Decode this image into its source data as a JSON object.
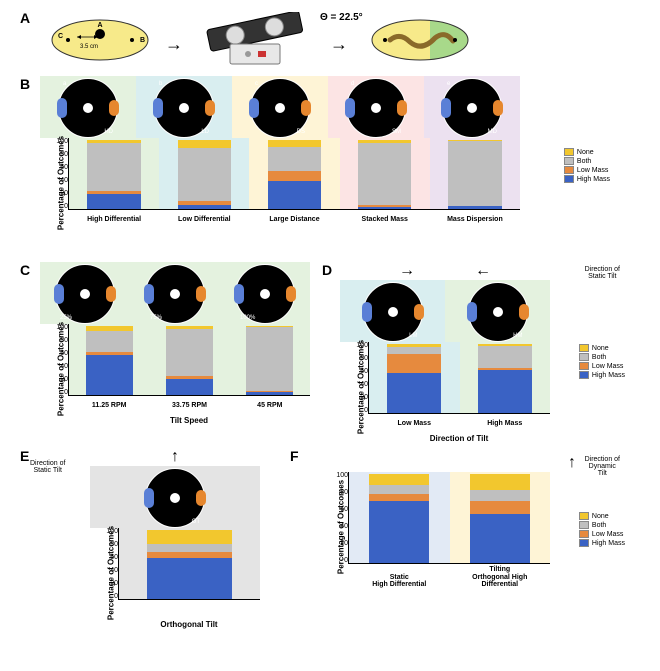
{
  "colors": {
    "high_mass": "#3a62c4",
    "low_mass": "#e68a3e",
    "both": "#bfbfbf",
    "none": "#f2c72e",
    "dish_yellow": "#f7ea8a",
    "dish_green": "#a8d98a",
    "spot_blue": "#5a7fd6",
    "spot_orange": "#e6872e",
    "tint_green": "#e4f2df",
    "tint_teal": "#d9eef0",
    "tint_yellow": "#fef4d6",
    "tint_pink": "#fce4e4",
    "tint_purple": "#ece1f0",
    "tint_grey": "#e4e4e4",
    "tint_blue": "#e2eaf5"
  },
  "legend_labels": {
    "none": "None",
    "both": "Both",
    "low": "Low Mass",
    "high": "High Mass"
  },
  "ylabel": "Percentage of Outcomes",
  "yticks": [
    "100",
    "80",
    "60",
    "40",
    "20",
    "0"
  ],
  "A": {
    "theta": "Θ = 22.5°",
    "radius": "3.5 cm",
    "pts": {
      "a": "A",
      "b": "B",
      "c": "C"
    }
  },
  "B": {
    "tints": [
      "tint_green",
      "tint_teal",
      "tint_yellow",
      "tint_pink",
      "tint_purple"
    ],
    "thumb_tags": [
      "a",
      "b",
      "c",
      "d",
      "e"
    ],
    "thumb_codes": [
      "HD",
      "LD",
      "DS",
      "SM",
      "MD"
    ],
    "labels": [
      "High Differential",
      "Low Differential",
      "Large Distance",
      "Stacked Mass",
      "Mass Dispersion"
    ],
    "bars": [
      {
        "high": 22,
        "low": 4,
        "both": 70,
        "none": 4
      },
      {
        "high": 6,
        "low": 5,
        "both": 78,
        "none": 11
      },
      {
        "high": 40,
        "low": 15,
        "both": 35,
        "none": 10
      },
      {
        "high": 3,
        "low": 3,
        "both": 90,
        "none": 4
      },
      {
        "high": 4,
        "low": 1,
        "both": 94,
        "none": 1
      }
    ]
  },
  "C": {
    "xlabel": "Tilt Speed",
    "tint": "tint_green",
    "thumb_pct": [
      "25%",
      "75%",
      "100%"
    ],
    "labels": [
      "11.25 RPM",
      "33.75 RPM",
      "45 RPM"
    ],
    "bars": [
      {
        "high": 58,
        "low": 5,
        "both": 30,
        "none": 7
      },
      {
        "high": 23,
        "low": 5,
        "both": 68,
        "none": 4
      },
      {
        "high": 4,
        "low": 2,
        "both": 92,
        "none": 2
      }
    ]
  },
  "D": {
    "title": "Direction of\nStatic Tilt",
    "xlabel": "Direction of Tilt",
    "labels": [
      "Low Mass",
      "High Mass"
    ],
    "thumb_codes": [
      "LM",
      "HM"
    ],
    "tints": [
      "tint_teal",
      "tint_green"
    ],
    "bars": [
      {
        "high": 58,
        "low": 27,
        "both": 11,
        "none": 4
      },
      {
        "high": 62,
        "low": 3,
        "both": 32,
        "none": 3
      }
    ]
  },
  "E": {
    "title": "Direction of\nStatic Tilt",
    "label": "Orthogonal Tilt",
    "thumb_code": "OT",
    "tint": "tint_grey",
    "bar": {
      "high": 60,
      "low": 8,
      "both": 12,
      "none": 20
    }
  },
  "F": {
    "title": "Direction of\nDynamic\nTilt",
    "labels": [
      "Static\nHigh Differential",
      "Tilting\nOrthogonal High\nDifferential"
    ],
    "tints": [
      "tint_blue",
      "tint_yellow"
    ],
    "bars": [
      {
        "high": 70,
        "low": 8,
        "both": 10,
        "none": 12
      },
      {
        "high": 55,
        "low": 15,
        "both": 12,
        "none": 18
      }
    ]
  }
}
